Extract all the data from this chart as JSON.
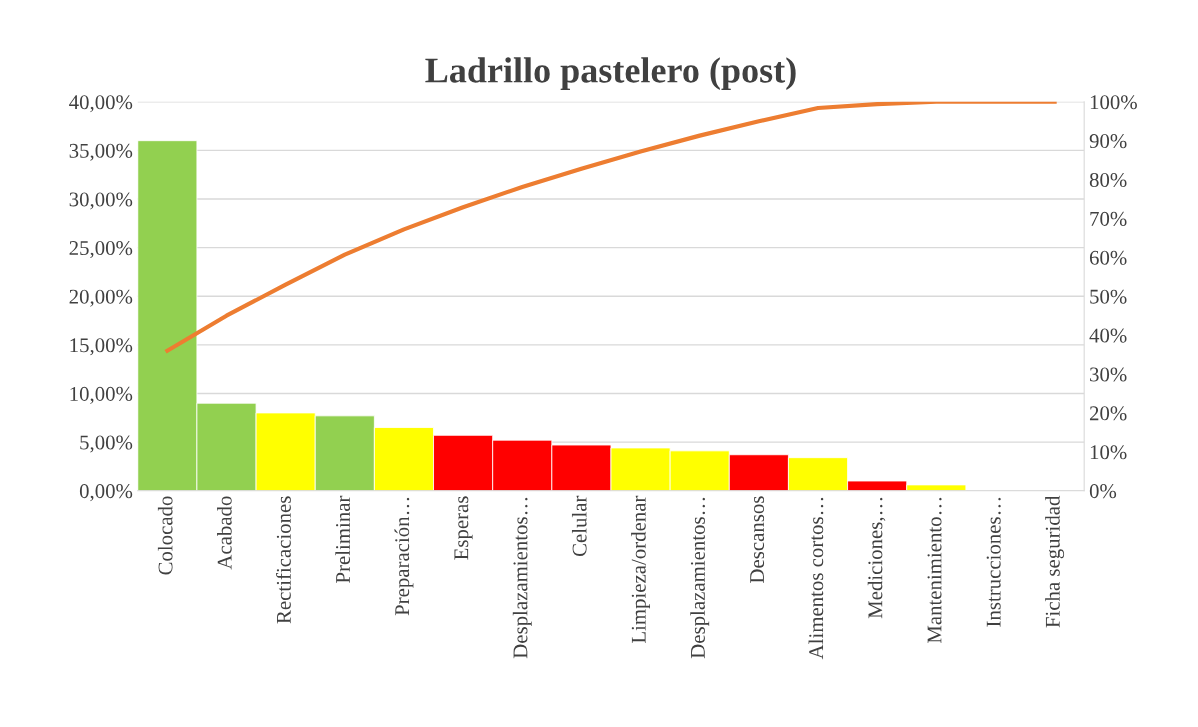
{
  "chart_data": {
    "type": "bar",
    "title": "Ladrillo pastelero (post)",
    "categories": [
      "Colocado",
      "Acabado",
      "Rectificaciones",
      "Preliminar",
      "Preparación…",
      "Esperas",
      "Desplazamientos…",
      "Celular",
      "Limpieza/ordenar",
      "Desplazamientos…",
      "Descansos",
      "Alimentos cortos…",
      "Mediciones,…",
      "Mantenimiento…",
      "Instrucciones…",
      "Ficha seguridad"
    ],
    "series": [
      {
        "values": [
          36,
          9,
          8,
          7.7,
          6.5,
          5.7,
          5.2,
          4.7,
          4.4,
          4.1,
          3.7,
          3.4,
          1,
          0.6,
          0,
          0
        ],
        "colors": [
          "#92d050",
          "#92d050",
          "#ffff00",
          "#92d050",
          "#ffff00",
          "#ff0000",
          "#ff0000",
          "#ff0000",
          "#ffff00",
          "#ffff00",
          "#ff0000",
          "#ffff00",
          "#ff0000",
          "#ffff00",
          null,
          null
        ]
      },
      {
        "type": "line",
        "axis": "y2",
        "color": "#ed7d31",
        "values": [
          36,
          45,
          53,
          60.7,
          67.2,
          72.9,
          78.1,
          82.8,
          87.2,
          91.3,
          95,
          98.4,
          99.4,
          100,
          100,
          100
        ]
      }
    ],
    "ylim": [
      0,
      40
    ],
    "yticks": [
      {
        "value": 0,
        "label": "0,00%"
      },
      {
        "value": 5,
        "label": "5,00%"
      },
      {
        "value": 10,
        "label": "10,00%"
      },
      {
        "value": 15,
        "label": "15,00%"
      },
      {
        "value": 20,
        "label": "20,00%"
      },
      {
        "value": 25,
        "label": "25,00%"
      },
      {
        "value": 30,
        "label": "30,00%"
      },
      {
        "value": 35,
        "label": "35,00%"
      },
      {
        "value": 40,
        "label": "40,00%"
      }
    ],
    "y2lim": [
      0,
      100
    ],
    "y2ticks": [
      {
        "value": 0,
        "label": "0%"
      },
      {
        "value": 10,
        "label": "10%"
      },
      {
        "value": 20,
        "label": "20%"
      },
      {
        "value": 30,
        "label": "30%"
      },
      {
        "value": 40,
        "label": "40%"
      },
      {
        "value": 50,
        "label": "50%"
      },
      {
        "value": 60,
        "label": "60%"
      },
      {
        "value": 70,
        "label": "70%"
      },
      {
        "value": 80,
        "label": "80%"
      },
      {
        "value": 90,
        "label": "90%"
      },
      {
        "value": 100,
        "label": "100%"
      }
    ],
    "grid": "y",
    "legend": false,
    "marker": "none",
    "line_style": "solid"
  }
}
